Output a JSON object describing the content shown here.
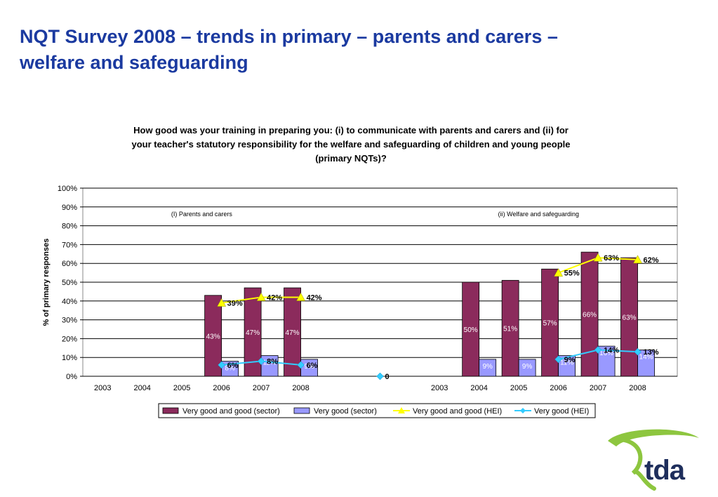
{
  "slide": {
    "title_line1": "NQT Survey 2008 – trends in primary – parents and carers –",
    "title_line2": "welfare and safeguarding"
  },
  "logo": {
    "text": "tda"
  },
  "colors": {
    "sector_good": "#8b2b5c",
    "sector_very_good": "#9999ff",
    "hei_good": "#ffff00",
    "hei_very_good": "#33ccff",
    "title": "#1b3aa0"
  },
  "chart_data": {
    "type": "bar",
    "title_line1": "How good was your training in preparing you: (i) to communicate with parents and carers and (ii) for",
    "title_line2": "your teacher's statutory responsibility for the welfare and safeguarding of children and young people",
    "title_line3": "(primary NQTs)?",
    "ylabel": "% of primary responses",
    "ylim": [
      0,
      100
    ],
    "y_ticks": [
      "0%",
      "10%",
      "20%",
      "30%",
      "40%",
      "50%",
      "60%",
      "70%",
      "80%",
      "90%",
      "100%"
    ],
    "grid": true,
    "legend_position": "bottom",
    "legend": [
      "Very good and good (sector)",
      "Very good (sector)",
      "Very good and good (HEI)",
      "Very good (HEI)"
    ],
    "groups": [
      {
        "label": "(I) Parents and carers",
        "categories": [
          "2003",
          "2004",
          "2005",
          "2006",
          "2007",
          "2008"
        ],
        "series": [
          {
            "name": "Very good and good (sector)",
            "kind": "bar",
            "values": [
              null,
              null,
              null,
              43,
              47,
              47
            ],
            "labels": [
              "",
              "",
              "",
              "43%",
              "47%",
              "47%"
            ]
          },
          {
            "name": "Very good (sector)",
            "kind": "bar",
            "values": [
              null,
              null,
              null,
              8,
              11,
              9
            ],
            "labels": [
              "",
              "",
              "",
              "8%",
              "11%",
              "9%"
            ]
          },
          {
            "name": "Very good and good (HEI)",
            "kind": "line",
            "values": [
              null,
              null,
              null,
              39,
              42,
              42
            ],
            "labels": [
              "",
              "",
              "",
              "39%",
              "42%",
              "42%"
            ]
          },
          {
            "name": "Very good (HEI)",
            "kind": "line",
            "values": [
              null,
              null,
              null,
              6,
              8,
              6
            ],
            "labels": [
              "",
              "",
              "",
              "6%",
              "8%",
              "6%"
            ]
          }
        ]
      },
      {
        "label": "(ii) Welfare and safeguarding",
        "categories": [
          "2003",
          "2004",
          "2005",
          "2006",
          "2007",
          "2008"
        ],
        "series": [
          {
            "name": "Very good and good (sector)",
            "kind": "bar",
            "values": [
              null,
              50,
              51,
              57,
              66,
              63
            ],
            "labels": [
              "",
              "50%",
              "51%",
              "57%",
              "66%",
              "63%"
            ]
          },
          {
            "name": "Very good (sector)",
            "kind": "bar",
            "values": [
              null,
              9,
              9,
              11,
              16,
              14
            ],
            "labels": [
              "",
              "9%",
              "9%",
              "11%",
              "16%",
              "14%"
            ]
          },
          {
            "name": "Very good and good (HEI)",
            "kind": "line",
            "values": [
              null,
              null,
              null,
              55,
              63,
              62
            ],
            "labels": [
              "",
              "",
              "",
              "55%",
              "63%",
              "62%"
            ]
          },
          {
            "name": "Very good (HEI)",
            "kind": "line",
            "values": [
              null,
              null,
              null,
              9,
              14,
              13
            ],
            "labels": [
              "",
              "",
              "",
              "9%",
              "14%",
              "13%"
            ]
          }
        ]
      }
    ],
    "gap_marker": {
      "value": 0,
      "label": "0"
    }
  }
}
